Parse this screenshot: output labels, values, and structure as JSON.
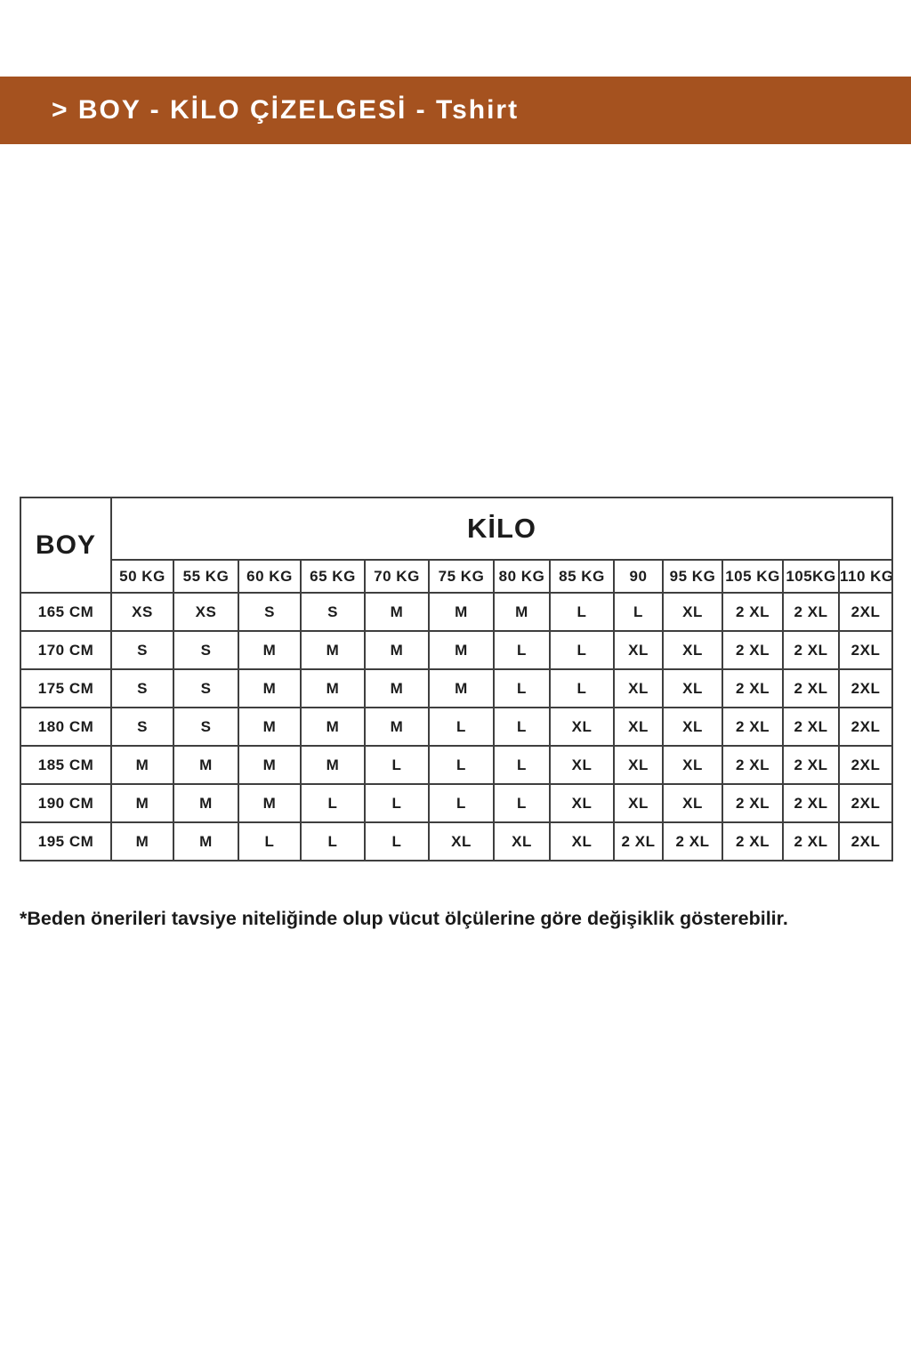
{
  "banner": {
    "text": "> BOY - KİLO ÇİZELGESİ - Tshirt",
    "background_color": "#A5521F",
    "text_color": "#FFFFFF"
  },
  "table": {
    "corner_header": "BOY",
    "group_header": "KİLO",
    "weight_columns": [
      "50 KG",
      "55 KG",
      "60 KG",
      "65 KG",
      "70 KG",
      "75 KG",
      "80 KG",
      "85 KG",
      "90",
      "95 KG",
      "105 KG",
      "105KG",
      "110 KG"
    ],
    "rows": [
      {
        "height": "165 CM",
        "sizes": [
          "XS",
          "XS",
          "S",
          "S",
          "M",
          "M",
          "M",
          "L",
          "L",
          "XL",
          "2 XL",
          "2 XL",
          "2XL"
        ]
      },
      {
        "height": "170 CM",
        "sizes": [
          "S",
          "S",
          "M",
          "M",
          "M",
          "M",
          "L",
          "L",
          "XL",
          "XL",
          "2 XL",
          "2 XL",
          "2XL"
        ]
      },
      {
        "height": "175 CM",
        "sizes": [
          "S",
          "S",
          "M",
          "M",
          "M",
          "M",
          "L",
          "L",
          "XL",
          "XL",
          "2 XL",
          "2 XL",
          "2XL"
        ]
      },
      {
        "height": "180 CM",
        "sizes": [
          "S",
          "S",
          "M",
          "M",
          "M",
          "L",
          "L",
          "XL",
          "XL",
          "XL",
          "2 XL",
          "2 XL",
          "2XL"
        ]
      },
      {
        "height": "185 CM",
        "sizes": [
          "M",
          "M",
          "M",
          "M",
          "L",
          "L",
          "L",
          "XL",
          "XL",
          "XL",
          "2 XL",
          "2 XL",
          "2XL"
        ]
      },
      {
        "height": "190 CM",
        "sizes": [
          "M",
          "M",
          "M",
          "L",
          "L",
          "L",
          "L",
          "XL",
          "XL",
          "XL",
          "2 XL",
          "2 XL",
          "2XL"
        ]
      },
      {
        "height": "195 CM",
        "sizes": [
          "M",
          "M",
          "L",
          "L",
          "L",
          "XL",
          "XL",
          "XL",
          "2 XL",
          "2 XL",
          "2 XL",
          "2 XL",
          "2XL"
        ]
      }
    ]
  },
  "footnote": {
    "text": "*Beden önerileri tavsiye niteliğinde olup vücut ölçülerine göre değişiklik gösterebilir."
  }
}
